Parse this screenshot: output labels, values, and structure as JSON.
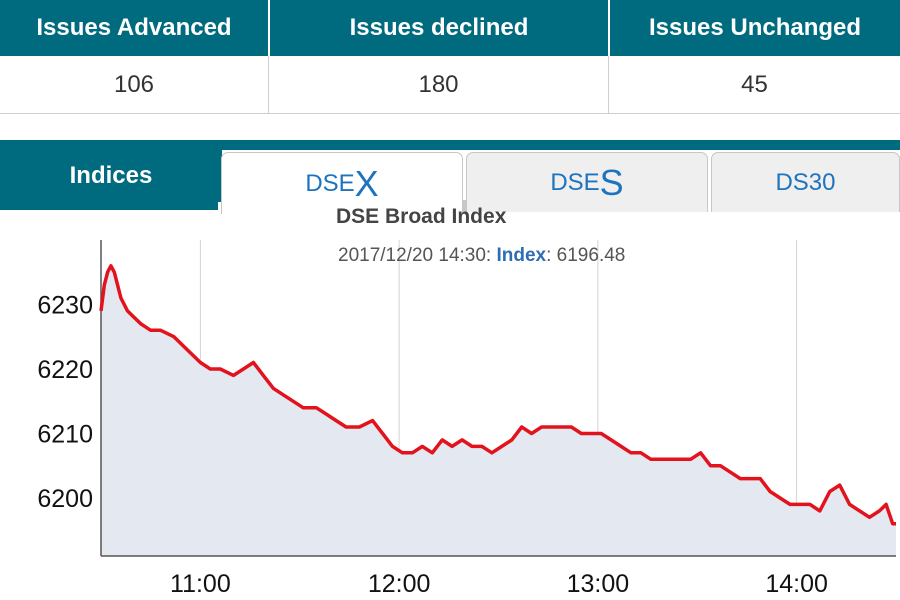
{
  "stats": {
    "headers": [
      "Issues Advanced",
      "Issues declined",
      "Issues Unchanged"
    ],
    "values": [
      "106",
      "180",
      "45"
    ]
  },
  "tabs": {
    "indices_label": "Indices",
    "dsex": {
      "prefix": "DSE",
      "suffix": "X"
    },
    "dses": {
      "prefix": "DSE",
      "suffix": "S"
    },
    "ds30": "DS30"
  },
  "colors": {
    "header_bg": "#006b7f",
    "line": "#e3131e",
    "fill": "#e3e8f1",
    "tab_text": "#1e73be"
  },
  "chart_data": {
    "type": "area",
    "title": "DSE Broad Index",
    "tooltip": {
      "datetime": "2017/12/20 14:30:",
      "key": "Index",
      "value": "6196.48"
    },
    "xlabel": "",
    "ylabel": "",
    "x_ticks": [
      "11:00",
      "12:00",
      "13:00",
      "14:00"
    ],
    "y_ticks": [
      6200,
      6210,
      6220,
      6230
    ],
    "xlim": [
      "10:30",
      "14:30"
    ],
    "ylim": [
      6191,
      6240
    ],
    "grid": true,
    "series": [
      {
        "points": [
          [
            "10:30",
            6229
          ],
          [
            "10:31",
            6233
          ],
          [
            "10:32",
            6235
          ],
          [
            "10:33",
            6236
          ],
          [
            "10:34",
            6235
          ],
          [
            "10:35",
            6233
          ],
          [
            "10:36",
            6231
          ],
          [
            "10:38",
            6229
          ],
          [
            "10:40",
            6228
          ],
          [
            "10:42",
            6227
          ],
          [
            "10:45",
            6226
          ],
          [
            "10:48",
            6226
          ],
          [
            "10:52",
            6225
          ],
          [
            "10:56",
            6223
          ],
          [
            "11:00",
            6221
          ],
          [
            "11:03",
            6220
          ],
          [
            "11:06",
            6220
          ],
          [
            "11:10",
            6219
          ],
          [
            "11:13",
            6220
          ],
          [
            "11:16",
            6221
          ],
          [
            "11:19",
            6219
          ],
          [
            "11:22",
            6217
          ],
          [
            "11:25",
            6216
          ],
          [
            "11:28",
            6215
          ],
          [
            "11:31",
            6214
          ],
          [
            "11:35",
            6214
          ],
          [
            "11:38",
            6213
          ],
          [
            "11:41",
            6212
          ],
          [
            "11:44",
            6211
          ],
          [
            "11:48",
            6211
          ],
          [
            "11:52",
            6212
          ],
          [
            "11:55",
            6210
          ],
          [
            "11:58",
            6208
          ],
          [
            "12:01",
            6207
          ],
          [
            "12:04",
            6207
          ],
          [
            "12:07",
            6208
          ],
          [
            "12:10",
            6207
          ],
          [
            "12:13",
            6209
          ],
          [
            "12:16",
            6208
          ],
          [
            "12:19",
            6209
          ],
          [
            "12:22",
            6208
          ],
          [
            "12:25",
            6208
          ],
          [
            "12:28",
            6207
          ],
          [
            "12:31",
            6208
          ],
          [
            "12:34",
            6209
          ],
          [
            "12:37",
            6211
          ],
          [
            "12:40",
            6210
          ],
          [
            "12:43",
            6211
          ],
          [
            "12:46",
            6211
          ],
          [
            "12:49",
            6211
          ],
          [
            "12:52",
            6211
          ],
          [
            "12:55",
            6210
          ],
          [
            "12:58",
            6210
          ],
          [
            "13:01",
            6210
          ],
          [
            "13:04",
            6209
          ],
          [
            "13:07",
            6208
          ],
          [
            "13:10",
            6207
          ],
          [
            "13:13",
            6207
          ],
          [
            "13:16",
            6206
          ],
          [
            "13:19",
            6206
          ],
          [
            "13:22",
            6206
          ],
          [
            "13:25",
            6206
          ],
          [
            "13:28",
            6206
          ],
          [
            "13:31",
            6207
          ],
          [
            "13:34",
            6205
          ],
          [
            "13:37",
            6205
          ],
          [
            "13:40",
            6204
          ],
          [
            "13:43",
            6203
          ],
          [
            "13:46",
            6203
          ],
          [
            "13:49",
            6203
          ],
          [
            "13:52",
            6201
          ],
          [
            "13:55",
            6200
          ],
          [
            "13:58",
            6199
          ],
          [
            "14:01",
            6199
          ],
          [
            "14:04",
            6199
          ],
          [
            "14:07",
            6198
          ],
          [
            "14:10",
            6201
          ],
          [
            "14:13",
            6202
          ],
          [
            "14:16",
            6199
          ],
          [
            "14:19",
            6198
          ],
          [
            "14:22",
            6197
          ],
          [
            "14:25",
            6198
          ],
          [
            "14:27",
            6199
          ],
          [
            "14:29",
            6196
          ],
          [
            "14:30",
            6196
          ]
        ]
      }
    ]
  }
}
